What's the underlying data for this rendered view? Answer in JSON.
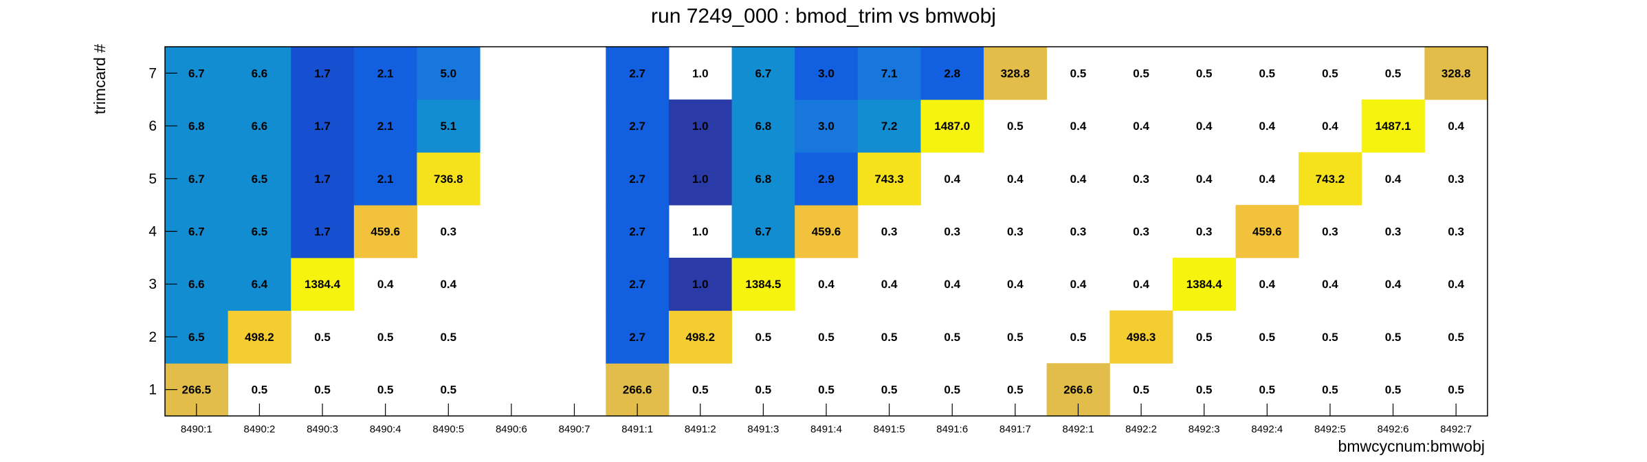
{
  "chart_data": {
    "type": "heatmap",
    "title": "run 7249_000 : bmod_trim vs bmwobj",
    "xlabel": "bmwcycnum:bmwobj",
    "ylabel": "trimcard #",
    "x": [
      "8490:1",
      "8490:2",
      "8490:3",
      "8490:4",
      "8490:5",
      "8490:6",
      "8490:7",
      "8491:1",
      "8491:2",
      "8491:3",
      "8491:4",
      "8491:5",
      "8491:6",
      "8491:7",
      "8492:1",
      "8492:2",
      "8492:3",
      "8492:4",
      "8492:5",
      "8492:6",
      "8492:7"
    ],
    "y": [
      "1",
      "2",
      "3",
      "4",
      "5",
      "6",
      "7"
    ],
    "values": [
      [
        266.5,
        0.5,
        0.5,
        0.5,
        0.5,
        null,
        null,
        266.6,
        0.5,
        0.5,
        0.5,
        0.5,
        0.5,
        0.5,
        266.6,
        0.5,
        0.5,
        0.5,
        0.5,
        0.5,
        0.5
      ],
      [
        6.5,
        498.2,
        0.5,
        0.5,
        0.5,
        null,
        null,
        2.7,
        498.2,
        0.5,
        0.5,
        0.5,
        0.5,
        0.5,
        0.5,
        498.3,
        0.5,
        0.5,
        0.5,
        0.5,
        0.5
      ],
      [
        6.6,
        6.4,
        1384.4,
        0.4,
        0.4,
        null,
        null,
        2.7,
        1.0,
        1384.5,
        0.4,
        0.4,
        0.4,
        0.4,
        0.4,
        0.4,
        1384.4,
        0.4,
        0.4,
        0.4,
        0.4
      ],
      [
        6.7,
        6.5,
        1.7,
        459.6,
        0.3,
        null,
        null,
        2.7,
        1.0,
        6.7,
        459.6,
        0.3,
        0.3,
        0.3,
        0.3,
        0.3,
        0.3,
        459.6,
        0.3,
        0.3,
        0.3
      ],
      [
        6.7,
        6.5,
        1.7,
        2.1,
        736.8,
        null,
        null,
        2.7,
        1.0,
        6.8,
        2.9,
        743.3,
        0.4,
        0.4,
        0.4,
        0.3,
        0.4,
        0.4,
        743.2,
        0.4,
        0.3
      ],
      [
        6.8,
        6.6,
        1.7,
        2.1,
        5.1,
        null,
        null,
        2.7,
        1.0,
        6.8,
        3.0,
        7.2,
        1487.0,
        0.5,
        0.4,
        0.4,
        0.4,
        0.4,
        0.4,
        1487.1,
        0.4
      ],
      [
        6.7,
        6.6,
        1.7,
        2.1,
        5.0,
        null,
        null,
        2.7,
        1.0,
        6.7,
        3.0,
        7.1,
        2.8,
        328.8,
        0.5,
        0.5,
        0.5,
        0.5,
        0.5,
        0.5,
        328.8
      ]
    ],
    "cell_colors": [
      [
        "gold",
        "white",
        "white",
        "white",
        "white",
        "none",
        "none",
        "gold",
        "white",
        "white",
        "white",
        "white",
        "white",
        "white",
        "gold",
        "white",
        "white",
        "white",
        "white",
        "white",
        "white"
      ],
      [
        "sky",
        "gold2",
        "white",
        "white",
        "white",
        "none",
        "none",
        "blue",
        "gold2",
        "white",
        "white",
        "white",
        "white",
        "white",
        "white",
        "gold2",
        "white",
        "white",
        "white",
        "white",
        "white"
      ],
      [
        "sky",
        "sky",
        "yellow",
        "white",
        "white",
        "none",
        "none",
        "blue",
        "navy",
        "yellow",
        "white",
        "white",
        "white",
        "white",
        "white",
        "white",
        "yellow",
        "white",
        "white",
        "white",
        "white"
      ],
      [
        "sky",
        "sky",
        "royal",
        "gold3",
        "white",
        "none",
        "none",
        "blue",
        "white",
        "sky",
        "gold3",
        "white",
        "white",
        "white",
        "white",
        "white",
        "white",
        "gold3",
        "white",
        "white",
        "white"
      ],
      [
        "sky",
        "sky",
        "royal",
        "blue",
        "yellow2",
        "none",
        "none",
        "blue",
        "navy",
        "sky",
        "blue",
        "yellow2",
        "white",
        "white",
        "white",
        "white",
        "white",
        "white",
        "yellow2",
        "white",
        "white"
      ],
      [
        "sky",
        "sky",
        "royal",
        "blue",
        "sky",
        "none",
        "none",
        "blue",
        "navy",
        "sky",
        "mid",
        "sky",
        "yellow",
        "white",
        "white",
        "white",
        "white",
        "white",
        "white",
        "yellow",
        "white"
      ],
      [
        "sky",
        "sky",
        "royal",
        "blue",
        "mid",
        "none",
        "none",
        "blue",
        "white",
        "sky",
        "blue",
        "mid",
        "blue",
        "gold",
        "white",
        "white",
        "white",
        "white",
        "white",
        "white",
        "gold"
      ]
    ],
    "palette": {
      "white": "#ffffff",
      "sky": "#138dd2",
      "mid": "#1777dc",
      "blue": "#1260e0",
      "royal": "#1650d0",
      "navy": "#2a3aa6",
      "gold": "#e2bd4a",
      "gold2": "#f4ce30",
      "gold3": "#f2c23c",
      "yellow": "#f6f40f",
      "yellow2": "#f5e21d"
    },
    "grid": false,
    "legend": "none"
  }
}
